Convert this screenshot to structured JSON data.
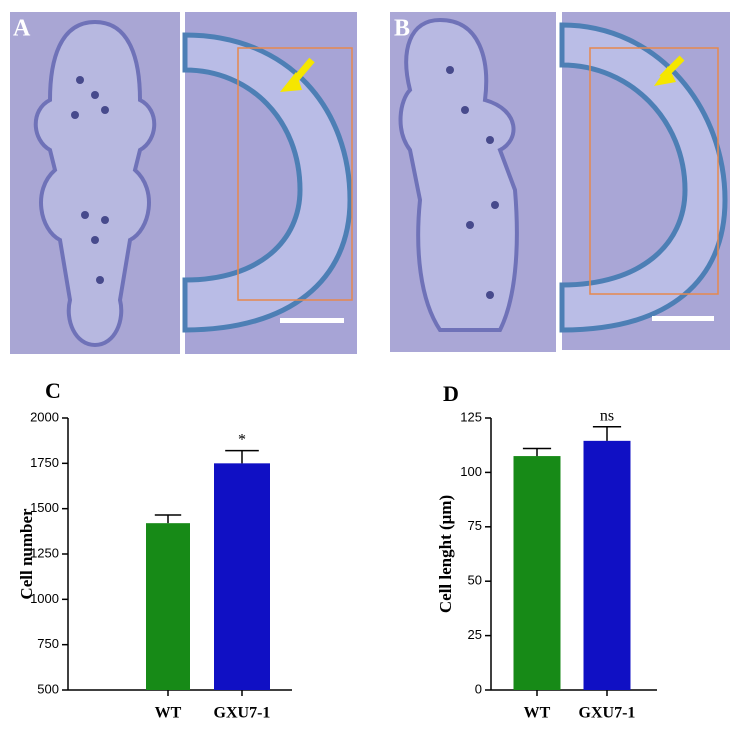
{
  "panels": [
    {
      "label": "A"
    },
    {
      "label": "B"
    }
  ],
  "chart_data": [
    {
      "type": "bar",
      "label": "C",
      "ylabel": "Cell number",
      "categories": [
        "WT",
        "GXU7-1"
      ],
      "values": [
        1420,
        1750
      ],
      "errors": [
        45,
        70
      ],
      "colors": [
        "#178a17",
        "#1010c4"
      ],
      "annotations": [
        null,
        "*"
      ],
      "ylim": [
        500,
        2000
      ],
      "yticks": [
        500,
        750,
        1000,
        1250,
        1500,
        1750,
        2000
      ]
    },
    {
      "type": "bar",
      "label": "D",
      "ylabel": "Cell lenght (μm)",
      "categories": [
        "WT",
        "GXU7-1"
      ],
      "values": [
        107.5,
        114.5
      ],
      "errors": [
        3.5,
        6.5
      ],
      "colors": [
        "#178a17",
        "#1010c4"
      ],
      "annotations": [
        null,
        "ns"
      ],
      "ylim": [
        0,
        125
      ],
      "yticks": [
        0,
        25,
        50,
        75,
        100,
        125
      ]
    }
  ]
}
